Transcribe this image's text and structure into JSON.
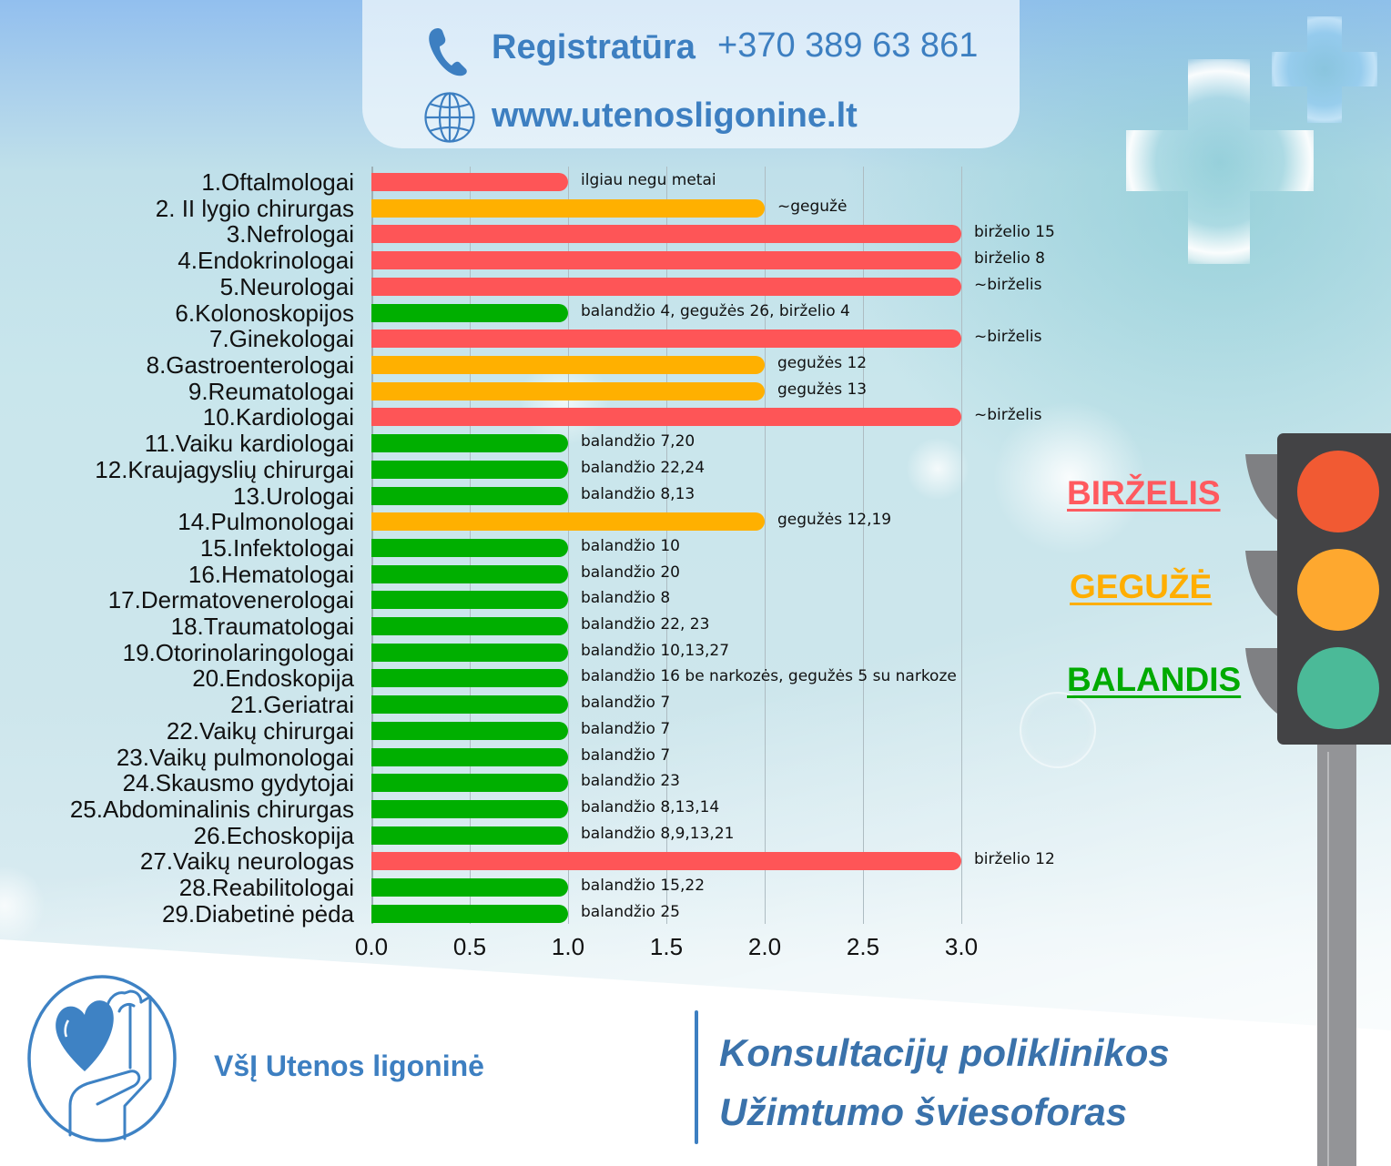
{
  "header": {
    "registry_label": "Registratūra",
    "phone": "+370 389 63 861",
    "website": "www.utenosligonine.lt",
    "accent_color": "#3d7fc1"
  },
  "legend": [
    {
      "label": "BIRŽELIS",
      "color": "#ff5a5f",
      "key": "red"
    },
    {
      "label": "GEGUŽĖ",
      "color": "#ffae00",
      "key": "orange"
    },
    {
      "label": "BALANDIS",
      "color": "#00aa00",
      "key": "green"
    }
  ],
  "traffic_light": {
    "lights": [
      {
        "name": "red",
        "color": "#f15a33"
      },
      {
        "name": "amber",
        "color": "#fea82f"
      },
      {
        "name": "green",
        "color": "#4bba98"
      }
    ]
  },
  "chart_data": {
    "type": "bar",
    "orientation": "horizontal",
    "title": "",
    "xlabel": "",
    "ylabel": "",
    "xlim": [
      0,
      3
    ],
    "xticks": [
      0,
      0.5,
      1,
      1.5,
      2,
      2.5,
      3
    ],
    "xtick_labels": [
      "0.0",
      "0.5",
      "1.0",
      "1.5",
      "2.0",
      "2.5",
      "3.0"
    ],
    "grid": true,
    "legend_position": "right",
    "palette": {
      "red": "#fe5557",
      "orange": "#ffb000",
      "green": "#00af00"
    },
    "categories": [
      "1.Oftalmologai",
      "2. II lygio chirurgas",
      "3.Nefrologai",
      "4.Endokrinologai",
      "5.Neurologai",
      "6.Kolonoskopijos",
      "7.Ginekologai",
      "8.Gastroenterologai",
      "9.Reumatologai",
      "10.Kardiologai",
      "11.Vaiku kardiologai",
      "12.Kraujagyslių chirurgai",
      "13.Urologai",
      "14.Pulmonologai",
      "15.Infektologai",
      "16.Hematologai",
      "17.Dermatovenerologai",
      "18.Traumatologai",
      "19.Otorinolaringologai",
      "20.Endoskopija",
      "21.Geriatrai",
      "22.Vaikų chirurgai",
      "23.Vaikų pulmonologai",
      "24.Skausmo gydytojai",
      "25.Abdominalinis chirurgas",
      "26.Echoskopija",
      "27.Vaikų neurologas",
      "28.Reabilitologai",
      "29.Diabetinė pėda"
    ],
    "values": [
      1,
      2,
      3,
      3,
      3,
      1,
      3,
      2,
      2,
      3,
      1,
      1,
      1,
      2,
      1,
      1,
      1,
      1,
      1,
      1,
      1,
      1,
      1,
      1,
      1,
      1,
      3,
      1,
      1
    ],
    "bar_colors": [
      "red",
      "orange",
      "red",
      "red",
      "red",
      "green",
      "red",
      "orange",
      "orange",
      "red",
      "green",
      "green",
      "green",
      "orange",
      "green",
      "green",
      "green",
      "green",
      "green",
      "green",
      "green",
      "green",
      "green",
      "green",
      "green",
      "green",
      "red",
      "green",
      "green"
    ],
    "annotations": [
      "ilgiau negu metai",
      "~gegužė",
      "birželio 15",
      "birželio 8",
      "~birželis",
      "balandžio 4, gegužės 26, birželio 4",
      "~birželis",
      "gegužės 12",
      "gegužės 13",
      "~birželis",
      "balandžio 7,20",
      "balandžio 22,24",
      "balandžio 8,13",
      "gegužės 12,19",
      "balandžio 10",
      "balandžio 20",
      "balandžio 8",
      "balandžio 22, 23",
      "balandžio 10,13,27",
      "balandžio 16 be narkozės, gegužės 5 su narkoze",
      "balandžio 7",
      "balandžio 7",
      "balandžio 7",
      "balandžio 23",
      "balandžio 8,13,14",
      "balandžio 8,9,13,21",
      "birželio 12",
      "balandžio 15,22",
      "balandžio 25"
    ]
  },
  "footer": {
    "org_name": "VšĮ Utenos ligoninė",
    "title_line1": "Konsultacijų poliklinikos",
    "title_line2": "Užimtumo šviesoforas"
  }
}
